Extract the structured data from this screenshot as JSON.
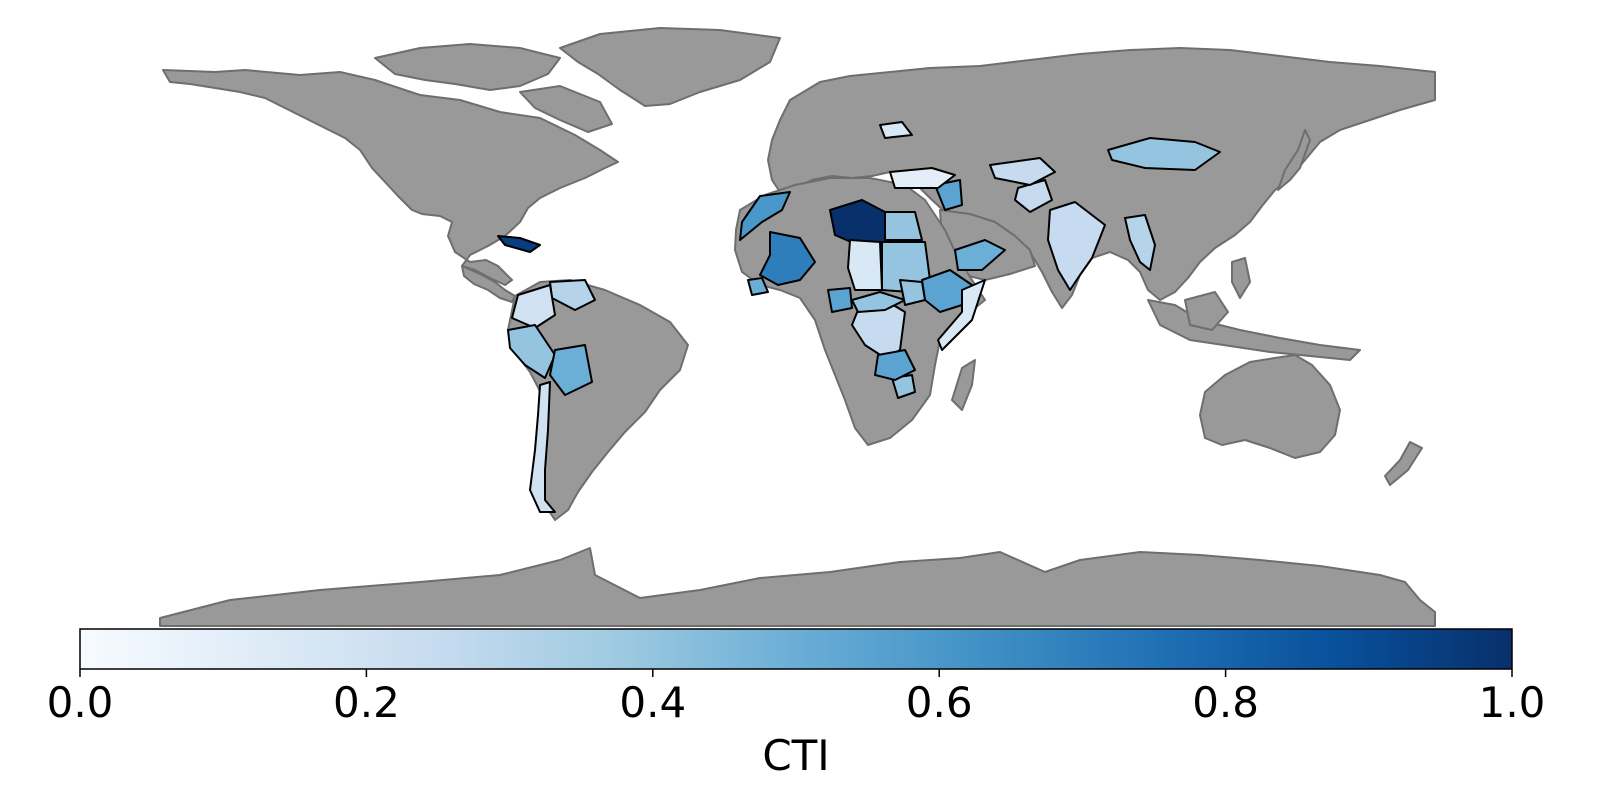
{
  "colorbar": {
    "label": "CTI",
    "ticks": [
      "0.0",
      "0.2",
      "0.4",
      "0.6",
      "0.8",
      "1.0"
    ],
    "range": [
      0,
      1
    ],
    "colormap": "Blues",
    "colors": [
      "#f7fbff",
      "#deebf7",
      "#c6dbef",
      "#9ecae1",
      "#6baed6",
      "#4292c6",
      "#2171b5",
      "#08519c",
      "#08306b"
    ]
  },
  "colors": {
    "no_data": "#999999",
    "no_data_border": "#6e6e6e",
    "data_border": "#000000"
  },
  "countries": [
    {
      "name": "Libya",
      "cti": 1.0
    },
    {
      "name": "Mali",
      "cti": 0.7
    },
    {
      "name": "Morocco",
      "cti": 0.6
    },
    {
      "name": "Egypt",
      "cti": 0.4
    },
    {
      "name": "Chad",
      "cti": 0.15
    },
    {
      "name": "Sudan",
      "cti": 0.4
    },
    {
      "name": "Ethiopia",
      "cti": 0.55
    },
    {
      "name": "Somalia",
      "cti": 0.15
    },
    {
      "name": "Yemen",
      "cti": 0.5
    },
    {
      "name": "Syria",
      "cti": 0.55
    },
    {
      "name": "Turkey",
      "cti": 0.1
    },
    {
      "name": "Ukraine",
      "cti": 0.15
    },
    {
      "name": "Afghanistan",
      "cti": 0.25
    },
    {
      "name": "Pakistan",
      "cti": 0.25
    },
    {
      "name": "India",
      "cti": 0.25
    },
    {
      "name": "Myanmar",
      "cti": 0.3
    },
    {
      "name": "Mongolia",
      "cti": 0.4
    },
    {
      "name": "DR Congo",
      "cti": 0.25
    },
    {
      "name": "Zimbabwe",
      "cti": 0.4
    },
    {
      "name": "Zambia",
      "cti": 0.55
    },
    {
      "name": "Nigeria",
      "cti": 0.55
    },
    {
      "name": "Venezuela",
      "cti": 0.3
    },
    {
      "name": "Colombia",
      "cti": 0.2
    },
    {
      "name": "Peru",
      "cti": 0.4
    },
    {
      "name": "Bolivia",
      "cti": 0.5
    },
    {
      "name": "Chile",
      "cti": 0.2
    },
    {
      "name": "Cuba",
      "cti": 0.95
    },
    {
      "name": "Guinea",
      "cti": 0.5
    },
    {
      "name": "Central African Republic",
      "cti": 0.4
    },
    {
      "name": "South Sudan",
      "cti": 0.4
    }
  ]
}
